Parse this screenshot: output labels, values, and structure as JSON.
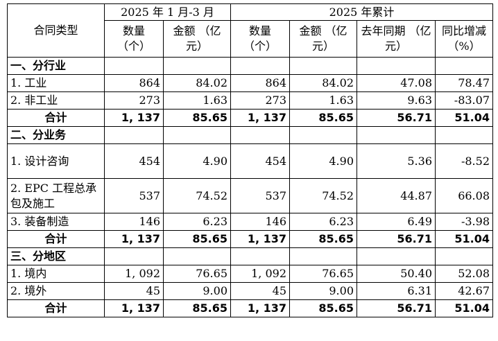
{
  "header": {
    "type_label": "合同类型",
    "period_q1": "2025 年 1 月-3 月",
    "period_ytd": "2025 年累计",
    "col_qty": "数量\n（个）",
    "col_amt": "金额\n（亿元）",
    "col_prev": "去年同期\n（亿元）",
    "col_yoy": "同比增减\n（%）"
  },
  "sections": [
    {
      "title": "一、分行业",
      "rows": [
        {
          "label": "1. 工业",
          "q_qty": "864",
          "q_amt": "84.02",
          "y_qty": "864",
          "y_amt": "84.02",
          "prev": "47.08",
          "yoy": "78.47"
        },
        {
          "label": "2. 非工业",
          "q_qty": "273",
          "q_amt": "1.63",
          "y_qty": "273",
          "y_amt": "1.63",
          "prev": "9.63",
          "yoy": "-83.07"
        }
      ],
      "total": {
        "label": "合计",
        "q_qty": "1, 137",
        "q_amt": "85.65",
        "y_qty": "1, 137",
        "y_amt": "85.65",
        "prev": "56.71",
        "yoy": "51.04"
      }
    },
    {
      "title": "二、分业务",
      "rows": [
        {
          "label": "1. 设计咨询",
          "q_qty": "454",
          "q_amt": "4.90",
          "y_qty": "454",
          "y_amt": "4.90",
          "prev": "5.36",
          "yoy": "-8.52"
        },
        {
          "label": "2. EPC 工程总承包及施工",
          "q_qty": "537",
          "q_amt": "74.52",
          "y_qty": "537",
          "y_amt": "74.52",
          "prev": "44.87",
          "yoy": "66.08"
        },
        {
          "label": "3. 装备制造",
          "q_qty": "146",
          "q_amt": "6.23",
          "y_qty": "146",
          "y_amt": "6.23",
          "prev": "6.49",
          "yoy": "-3.98"
        }
      ],
      "total": {
        "label": "合计",
        "q_qty": "1, 137",
        "q_amt": "85.65",
        "y_qty": "1, 137",
        "y_amt": "85.65",
        "prev": "56.71",
        "yoy": "51.04"
      }
    },
    {
      "title": "三、分地区",
      "rows": [
        {
          "label": "1. 境内",
          "q_qty": "1, 092",
          "q_amt": "76.65",
          "y_qty": "1, 092",
          "y_amt": "76.65",
          "prev": "50.40",
          "yoy": "52.08"
        },
        {
          "label": "2. 境外",
          "q_qty": "45",
          "q_amt": "9.00",
          "y_qty": "45",
          "y_amt": "9.00",
          "prev": "6.31",
          "yoy": "42.67"
        }
      ],
      "total": {
        "label": "合计",
        "q_qty": "1, 137",
        "q_amt": "85.65",
        "y_qty": "1, 137",
        "y_amt": "85.65",
        "prev": "56.71",
        "yoy": "51.04"
      }
    }
  ]
}
